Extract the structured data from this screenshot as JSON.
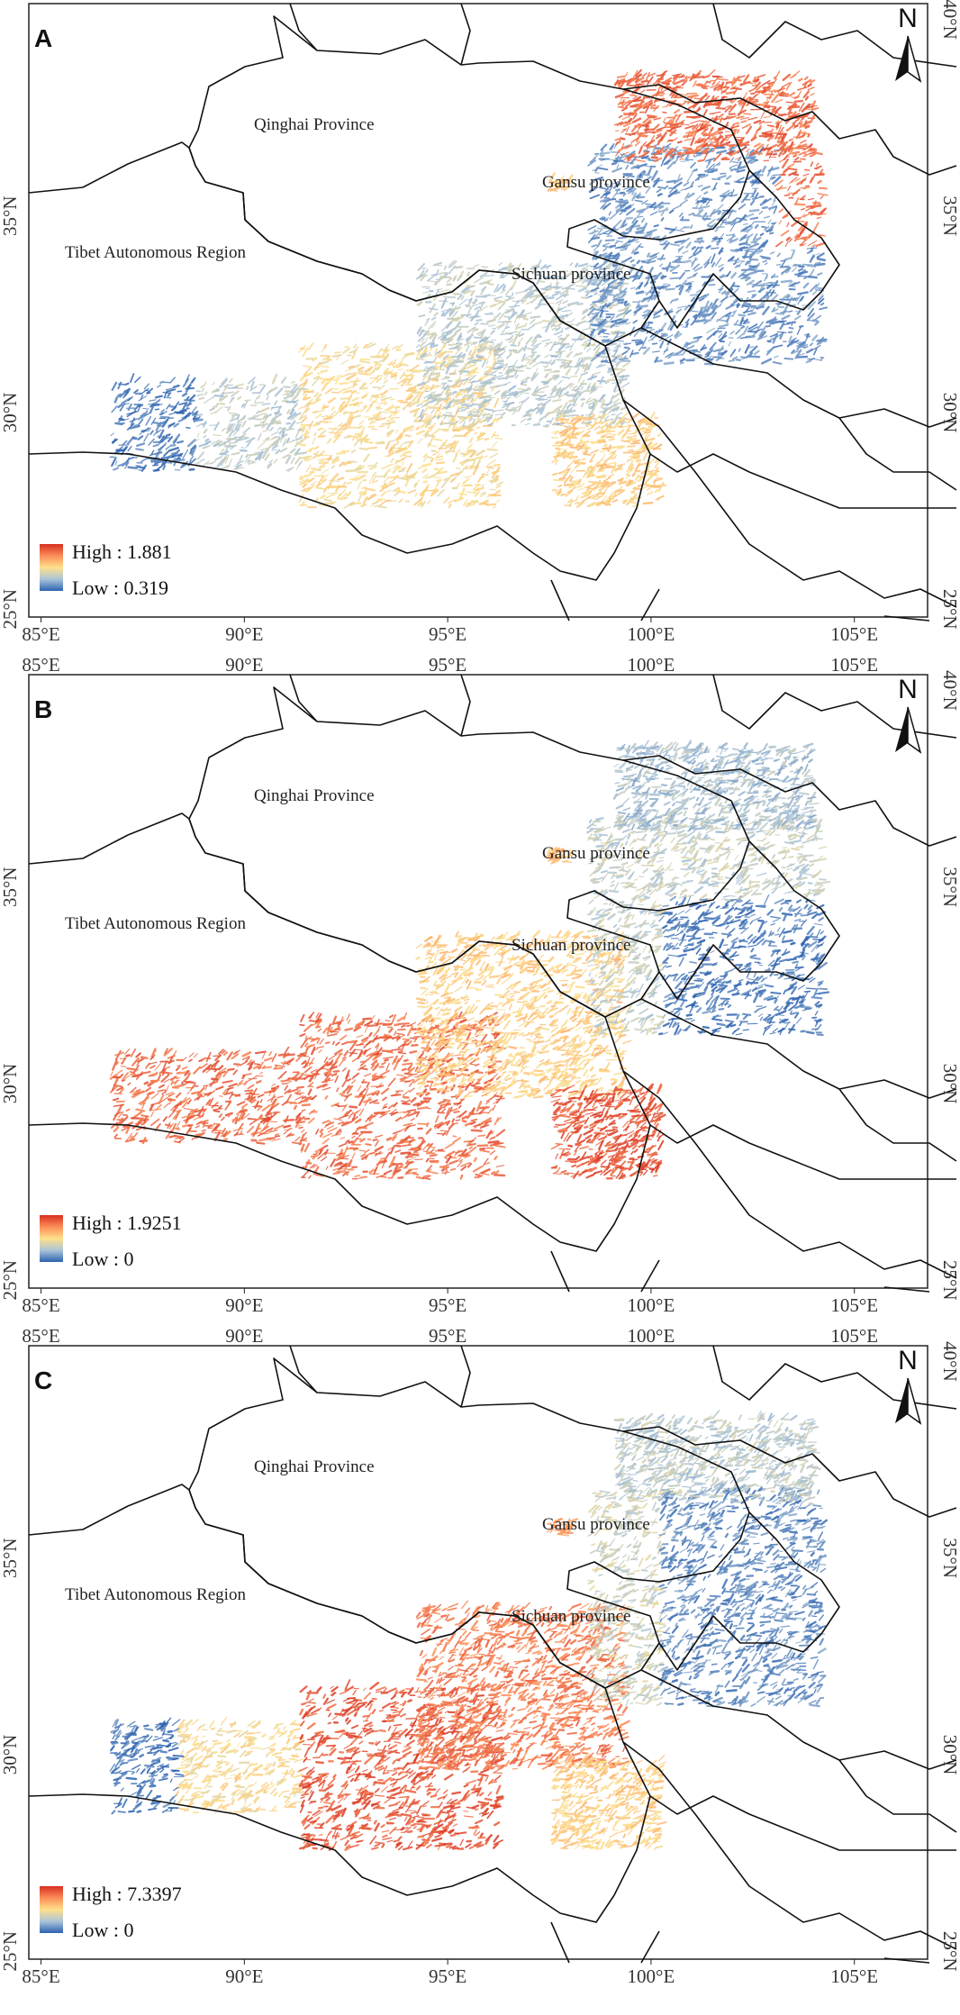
{
  "colors": {
    "high": "#d7301f",
    "mid_high": "#fc8d59",
    "mid": "#fee08b",
    "mid_low": "#abc4d8",
    "low": "#2c62b0",
    "boundary": "#111111"
  },
  "axes": {
    "x_ticks": [
      "85°E",
      "90°E",
      "95°E",
      "100°E",
      "105°E"
    ],
    "y_ticks": [
      "40°N",
      "35°N",
      "30°N",
      "25°N"
    ]
  },
  "north_arrow": {
    "label": "N",
    "icon": "north-arrow-icon"
  },
  "regions": {
    "qinghai": "Qinghai Province",
    "tibet": "Tibet Autonomous Region",
    "gansu": "Gansu province",
    "sichuan": "Sichuan province"
  },
  "panels": [
    {
      "letter": "A",
      "legend": {
        "high": "High :  1.881",
        "low": "Low :  0.319"
      },
      "pattern": "north_red_east_blue"
    },
    {
      "letter": "B",
      "legend": {
        "high": "High : 1.9251",
        "low": "Low : 0"
      },
      "pattern": "south_red_east_blue"
    },
    {
      "letter": "C",
      "legend": {
        "high": "High : 7.3397",
        "low": "Low : 0"
      },
      "pattern": "middle_red_west_blue"
    }
  ]
}
